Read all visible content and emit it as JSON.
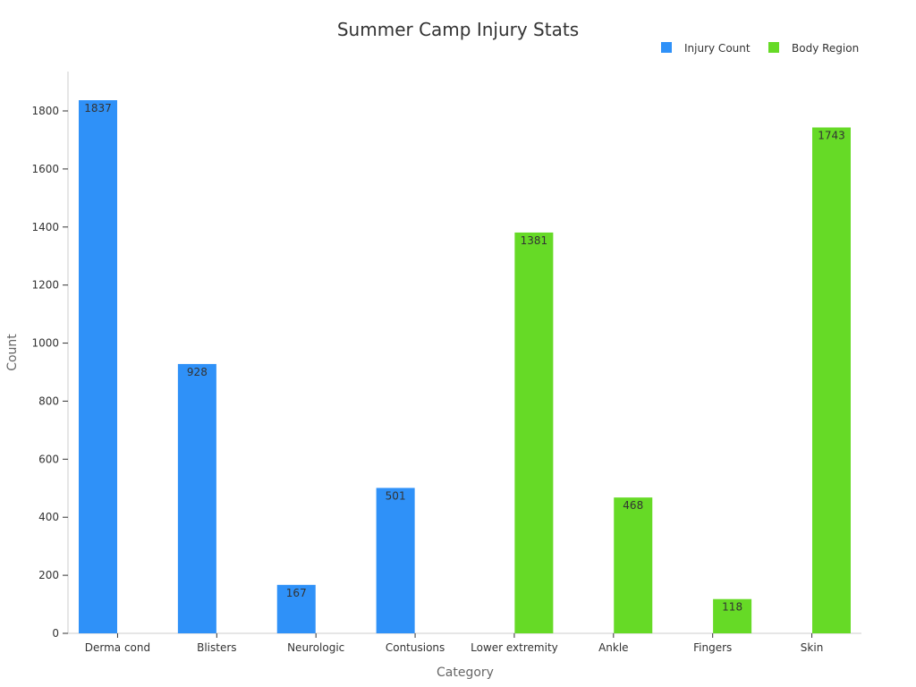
{
  "chart_data": {
    "type": "bar",
    "title": "Summer Camp Injury Stats",
    "xlabel": "Category",
    "ylabel": "Count",
    "ylim": [
      0,
      1930
    ],
    "yticks": [
      0,
      200,
      400,
      600,
      800,
      1000,
      1200,
      1400,
      1600,
      1800
    ],
    "legend_position": "top-right",
    "grid": false,
    "categories": [
      "Derma cond",
      "Blisters",
      "Neurologic",
      "Contusions",
      "Lower extremity",
      "Ankle",
      "Fingers",
      "Skin"
    ],
    "series": [
      {
        "name": "Injury Count",
        "color": "#2f91f8",
        "values": [
          1837,
          928,
          167,
          501,
          null,
          null,
          null,
          null
        ]
      },
      {
        "name": "Body Region",
        "color": "#66da26",
        "values": [
          null,
          null,
          null,
          null,
          1381,
          468,
          118,
          1743
        ]
      }
    ]
  }
}
